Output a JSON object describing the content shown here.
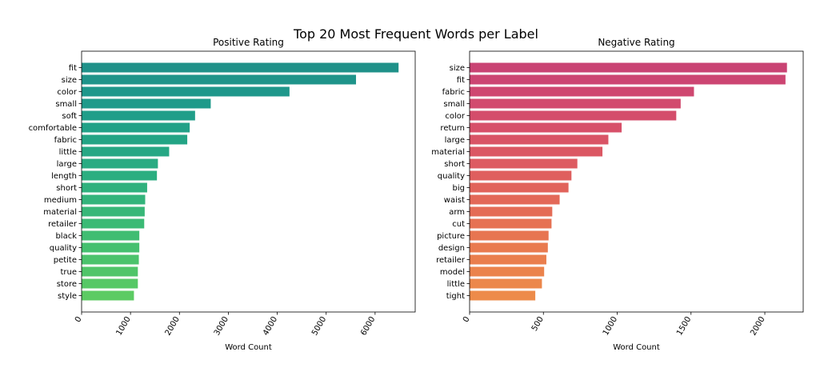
{
  "figure": {
    "title": "Top 20 Most Frequent Words per Label"
  },
  "chart_data": [
    {
      "type": "bar",
      "orientation": "horizontal",
      "title": "Positive Rating",
      "xlabel": "Word Count",
      "ylabel": "",
      "xlim": [
        0,
        6820
      ],
      "xticks": [
        0,
        1000,
        2000,
        3000,
        4000,
        5000,
        6000
      ],
      "tick_label_rotation": 60,
      "grid": false,
      "categories": [
        "fit",
        "size",
        "color",
        "small",
        "soft",
        "comfortable",
        "fabric",
        "little",
        "large",
        "length",
        "short",
        "medium",
        "material",
        "retailer",
        "black",
        "quality",
        "petite",
        "true",
        "store",
        "style"
      ],
      "values": [
        6480,
        5610,
        4250,
        2640,
        2320,
        2210,
        2160,
        1790,
        1560,
        1540,
        1340,
        1300,
        1290,
        1280,
        1180,
        1180,
        1170,
        1150,
        1150,
        1070
      ],
      "colors": [
        "#1f9189",
        "#1f948a",
        "#1f978b",
        "#1f9a8a",
        "#209e89",
        "#21a187",
        "#23a485",
        "#26a784",
        "#29ab82",
        "#2bae80",
        "#2fb17d",
        "#33b47b",
        "#38b778",
        "#3bba75",
        "#40bd72",
        "#45c06f",
        "#4bc36c",
        "#50c569",
        "#56c866",
        "#5ccb63"
      ]
    },
    {
      "type": "bar",
      "orientation": "horizontal",
      "title": "Negative Rating",
      "xlabel": "Word Count",
      "ylabel": "",
      "xlim": [
        0,
        2260
      ],
      "xticks": [
        0,
        500,
        1000,
        1500,
        2000
      ],
      "tick_label_rotation": 60,
      "grid": false,
      "categories": [
        "size",
        "fit",
        "fabric",
        "small",
        "color",
        "return",
        "large",
        "material",
        "short",
        "quality",
        "big",
        "waist",
        "arm",
        "cut",
        "picture",
        "design",
        "retailer",
        "model",
        "little",
        "tight"
      ],
      "values": [
        2150,
        2140,
        1520,
        1430,
        1400,
        1030,
        940,
        900,
        730,
        690,
        670,
        610,
        560,
        555,
        535,
        530,
        520,
        505,
        490,
        445
      ],
      "colors": [
        "#c94373",
        "#cc4572",
        "#cf4770",
        "#d24a6e",
        "#d44d6b",
        "#d75069",
        "#d95466",
        "#db5763",
        "#dd5b61",
        "#df5f5e",
        "#e1635b",
        "#e36858",
        "#e46c56",
        "#e67153",
        "#e77551",
        "#e97a4f",
        "#ea7e4d",
        "#eb834c",
        "#ec874b",
        "#ed8b4a"
      ]
    }
  ]
}
